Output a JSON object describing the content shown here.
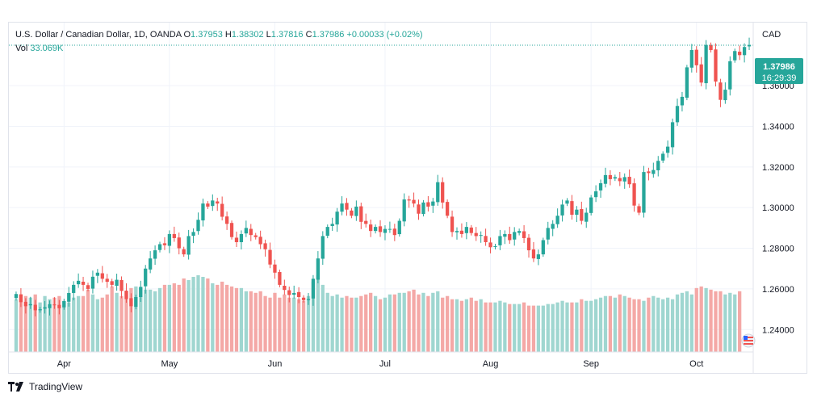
{
  "header": {
    "symbol": "U.S. Dollar / Canadian Dollar, 1D, OANDA",
    "o_label": "O",
    "o_value": "1.37953",
    "h_label": "H",
    "h_value": "1.38302",
    "l_label": "L",
    "l_value": "1.37816",
    "c_label": "C",
    "c_value": "1.37986",
    "change": "+0.00033 (+0.02%)",
    "vol_label": "Vol",
    "vol_value": "33.069K"
  },
  "currency_label": "CAD",
  "price_badge": {
    "price": "1.37986",
    "countdown": "16:29:39"
  },
  "brand": {
    "name": "TradingView"
  },
  "colors": {
    "up": "#26a69a",
    "down": "#ef5350",
    "up_vol": "#9fd6d0",
    "down_vol": "#f4a8a6",
    "grid": "#f0f3fa",
    "text": "#131722"
  },
  "chart_data": {
    "type": "candlestick",
    "y_ticks": [
      "1.24000",
      "1.26000",
      "1.28000",
      "1.30000",
      "1.32000",
      "1.34000",
      "1.36000"
    ],
    "x_ticks": [
      "Apr",
      "May",
      "Jun",
      "Jul",
      "Aug",
      "Sep",
      "Oct"
    ],
    "ylim": [
      1.229,
      1.391
    ],
    "last_price": 1.37986,
    "closes": [
      1.2575,
      1.2535,
      1.2515,
      1.2525,
      1.2495,
      1.25,
      1.251,
      1.2525,
      1.252,
      1.2505,
      1.254,
      1.258,
      1.262,
      1.264,
      1.262,
      1.26,
      1.266,
      1.268,
      1.265,
      1.2635,
      1.262,
      1.2645,
      1.259,
      1.255,
      1.2515,
      1.256,
      1.261,
      1.27,
      1.275,
      1.279,
      1.282,
      1.2815,
      1.287,
      1.285,
      1.28,
      1.277,
      1.286,
      1.288,
      1.294,
      1.302,
      1.3005,
      1.3035,
      1.302,
      1.2955,
      1.292,
      1.2855,
      1.283,
      1.287,
      1.29,
      1.2865,
      1.2855,
      1.282,
      1.2795,
      1.272,
      1.268,
      1.262,
      1.2595,
      1.257,
      1.258,
      1.256,
      1.2545,
      1.255,
      1.265,
      1.275,
      1.286,
      1.2905,
      1.292,
      1.298,
      1.302,
      1.299,
      1.296,
      1.3005,
      1.293,
      1.292,
      1.2885,
      1.2905,
      1.288,
      1.2895,
      1.2895,
      1.2865,
      1.2935,
      1.304,
      1.3035,
      1.302,
      1.297,
      1.3025,
      1.3005,
      1.303,
      1.3125,
      1.3025,
      1.296,
      1.288,
      1.2885,
      1.287,
      1.2905,
      1.2875,
      1.286,
      1.2865,
      1.283,
      1.2805,
      1.281,
      1.286,
      1.287,
      1.284,
      1.288,
      1.2885,
      1.285,
      1.279,
      1.275,
      1.277,
      1.284,
      1.29,
      1.292,
      1.296,
      1.3015,
      1.3035,
      1.2965,
      1.299,
      1.2935,
      1.2975,
      1.305,
      1.308,
      1.312,
      1.316,
      1.314,
      1.315,
      1.313,
      1.315,
      1.3115,
      1.301,
      1.2975,
      1.3175,
      1.317,
      1.3185,
      1.323,
      1.3265,
      1.33,
      1.342,
      1.35,
      1.3545,
      1.369,
      1.3775,
      1.37,
      1.3615,
      1.38,
      1.3775,
      1.362,
      1.353,
      1.358,
      1.372,
      1.377,
      1.375,
      1.379,
      1.38
    ],
    "volumes": [
      66,
      66,
      70,
      68,
      72,
      62,
      70,
      66,
      68,
      70,
      64,
      62,
      68,
      70,
      70,
      78,
      72,
      66,
      68,
      72,
      82,
      74,
      70,
      76,
      80,
      82,
      80,
      78,
      78,
      76,
      80,
      84,
      84,
      86,
      84,
      92,
      90,
      94,
      96,
      94,
      92,
      86,
      84,
      88,
      84,
      82,
      80,
      80,
      76,
      76,
      74,
      76,
      70,
      68,
      74,
      68,
      72,
      68,
      68,
      66,
      64,
      70,
      88,
      96,
      84,
      74,
      70,
      72,
      68,
      70,
      68,
      68,
      70,
      72,
      74,
      70,
      66,
      68,
      72,
      72,
      74,
      74,
      76,
      78,
      72,
      74,
      70,
      74,
      76,
      68,
      70,
      66,
      66,
      64,
      66,
      68,
      64,
      66,
      62,
      62,
      62,
      64,
      62,
      60,
      60,
      60,
      62,
      58,
      58,
      58,
      58,
      60,
      60,
      62,
      64,
      62,
      62,
      62,
      66,
      64,
      64,
      66,
      68,
      70,
      70,
      68,
      72,
      70,
      68,
      66,
      66,
      64,
      68,
      70,
      68,
      66,
      68,
      66,
      72,
      74,
      76,
      72,
      80,
      82,
      80,
      78,
      76,
      76,
      72,
      74,
      72,
      76
    ]
  }
}
